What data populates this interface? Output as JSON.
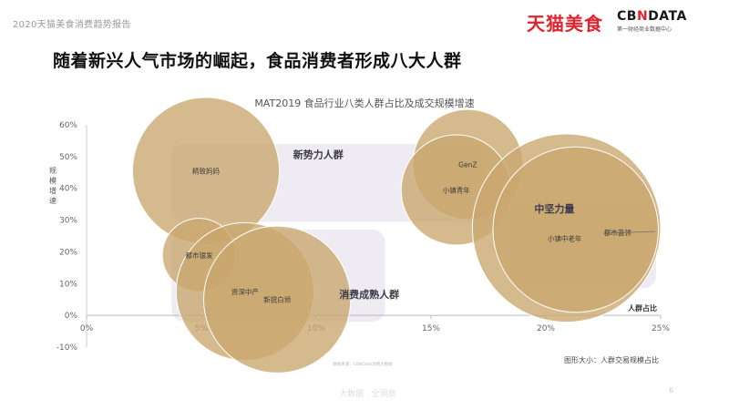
{
  "header": {
    "report_title": "2020天猫美食消费趋势报告",
    "brand_tmall": "天猫美食",
    "brand_cbn_logo_left": "CB",
    "brand_cbn_logo_x": "N",
    "brand_cbn_logo_right": "DATA",
    "brand_cbn_sub": "第一财经商业数据中心"
  },
  "headline": "随着新兴人气市场的崛起，食品消费者形成八大人群",
  "footer": {
    "source_note": "数据来源：CBNData消费大数据",
    "watermark": "大数据 · 全洞察",
    "page_no": "6"
  },
  "colors": {
    "bubble": "#c9a76e",
    "group_bg": "#efebf2",
    "axis": "#999999",
    "text": "#333333"
  },
  "chart_data": {
    "type": "scatter",
    "title": "MAT2019 食品行业八类人群占比及成交规模增速",
    "xlabel": "人群占比",
    "ylabel": "规模增速",
    "size_note": "图形大小：人群交易规模占比",
    "xlim": [
      0,
      25
    ],
    "ylim": [
      -10,
      60
    ],
    "x_ticks": [
      0,
      5,
      10,
      15,
      20,
      25
    ],
    "x_tick_labels": [
      "0%",
      "5%",
      "10%",
      "15%",
      "20%",
      "25%"
    ],
    "y_ticks": [
      -10,
      0,
      10,
      20,
      30,
      40,
      50,
      60
    ],
    "y_tick_labels": [
      "-10%",
      "0%",
      "10%",
      "20%",
      "30%",
      "40%",
      "50%",
      "60%"
    ],
    "groups": [
      {
        "name": "新势力人群",
        "x_range": [
          3.7,
          17.4
        ],
        "y_range": [
          29.5,
          54
        ],
        "label_at": [
          9.0,
          49.5
        ]
      },
      {
        "name": "消费成熟人群",
        "x_range": [
          3.7,
          13.0
        ],
        "y_range": [
          -2,
          27
        ],
        "label_at": [
          11.0,
          5.5
        ]
      },
      {
        "name": "中坚力量",
        "x_range": [
          18.4,
          24.8
        ],
        "y_range": [
          8.5,
          36.5
        ],
        "label_at": [
          19.5,
          32.5
        ]
      }
    ],
    "points": [
      {
        "name": "精致妈妈",
        "x": 5.2,
        "y": 45.5,
        "size": 3.2
      },
      {
        "name": "GenZ",
        "x": 16.6,
        "y": 47.5,
        "size": 2.4
      },
      {
        "name": "小镇青年",
        "x": 16.1,
        "y": 39.5,
        "size": 2.4
      },
      {
        "name": "都市银发",
        "x": 4.9,
        "y": 19.0,
        "size": 1.6
      },
      {
        "name": "资深中产",
        "x": 6.9,
        "y": 7.5,
        "size": 3.0
      },
      {
        "name": "新锐白领",
        "x": 8.3,
        "y": 5.0,
        "size": 3.2
      },
      {
        "name": "小镇中老年",
        "x": 20.9,
        "y": 27.5,
        "size": 4.1
      },
      {
        "name": "都市蓝领",
        "x": 21.3,
        "y": 27.0,
        "size": 3.6
      }
    ]
  }
}
